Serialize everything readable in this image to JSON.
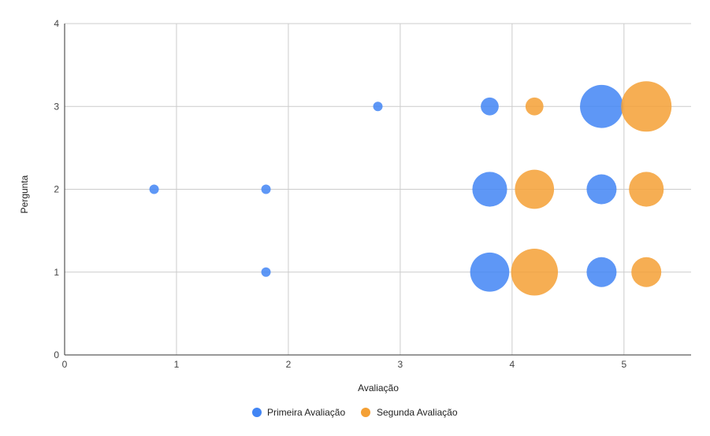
{
  "chart_data": {
    "type": "scatter",
    "title": "",
    "xlabel": "Avaliação",
    "ylabel": "Pergunta",
    "xlim": [
      0,
      5.6
    ],
    "ylim": [
      0,
      4
    ],
    "x_ticks": [
      0,
      1,
      2,
      3,
      4,
      5
    ],
    "y_ticks": [
      0,
      1,
      2,
      3,
      4
    ],
    "grid": true,
    "legend_position": "bottom",
    "series": [
      {
        "name": "Primeira Avaliação",
        "color": "#4285f4",
        "points": [
          {
            "x": 0.8,
            "y": 2,
            "size": 1
          },
          {
            "x": 1.8,
            "y": 2,
            "size": 1
          },
          {
            "x": 1.8,
            "y": 1,
            "size": 1
          },
          {
            "x": 2.8,
            "y": 3,
            "size": 1
          },
          {
            "x": 3.8,
            "y": 3,
            "size": 2
          },
          {
            "x": 3.8,
            "y": 2,
            "size": 5
          },
          {
            "x": 3.8,
            "y": 1,
            "size": 6
          },
          {
            "x": 4.8,
            "y": 3,
            "size": 7
          },
          {
            "x": 4.8,
            "y": 2,
            "size": 4
          },
          {
            "x": 4.8,
            "y": 1,
            "size": 4
          }
        ]
      },
      {
        "name": "Segunda Avaliação",
        "color": "#f4a035",
        "points": [
          {
            "x": 4.2,
            "y": 3,
            "size": 2
          },
          {
            "x": 4.2,
            "y": 2,
            "size": 6
          },
          {
            "x": 4.2,
            "y": 1,
            "size": 8
          },
          {
            "x": 5.2,
            "y": 3,
            "size": 9
          },
          {
            "x": 5.2,
            "y": 2,
            "size": 5
          },
          {
            "x": 5.2,
            "y": 1,
            "size": 4
          }
        ]
      }
    ]
  }
}
